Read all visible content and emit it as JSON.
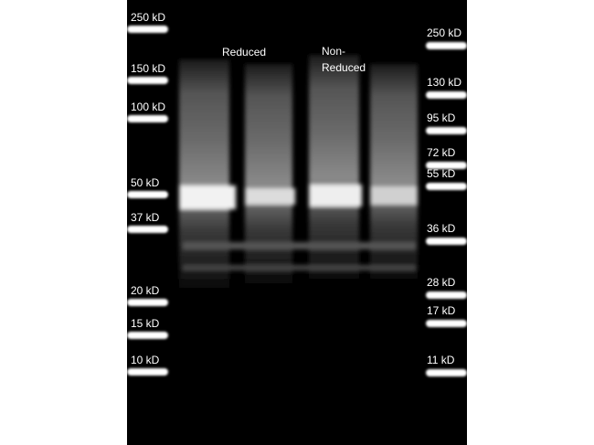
{
  "left_ladder": [
    "250 kD",
    "150 kD",
    "100 kD",
    "50 kD",
    "37 kD",
    "20 kD",
    "15 kD",
    "10 kD"
  ],
  "right_ladder": [
    "250 kD",
    "130 kD",
    "95 kD",
    "72 kD",
    "55 kD",
    "36 kD",
    "28 kD",
    "17 kD",
    "11 kD"
  ],
  "lanes": [
    [
      "Reduced"
    ],
    [
      "Non-",
      "Reduced"
    ]
  ]
}
